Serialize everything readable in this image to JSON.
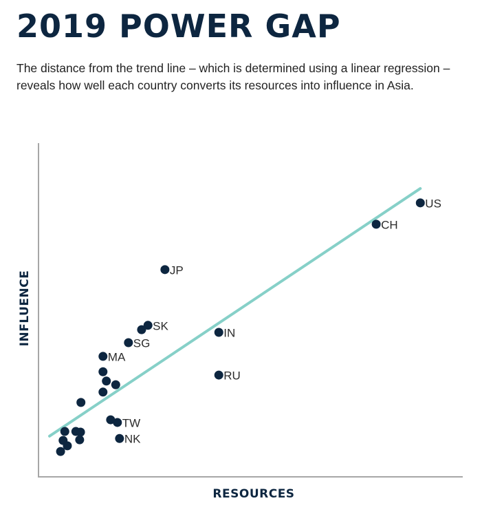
{
  "header": {
    "title": "2019 POWER GAP",
    "subtitle": "The distance from the trend line – which is determined using a linear regression – reveals how well each country converts its resources into influence in Asia."
  },
  "colors": {
    "title": "#0d2640",
    "point": "#0d2640",
    "trend": "#86d0c8",
    "axis": "#a6a6a6"
  },
  "chart_data": {
    "type": "scatter",
    "title": "2019 POWER GAP",
    "xlabel": "RESOURCES",
    "ylabel": "INFLUENCE",
    "xlim": [
      0,
      100
    ],
    "ylim": [
      0,
      100
    ],
    "grid": false,
    "ticks": "none",
    "points": [
      {
        "label": "US",
        "x": 90.0,
        "y": 82.1
      },
      {
        "label": "CH",
        "x": 79.6,
        "y": 75.7
      },
      {
        "label": "JP",
        "x": 29.8,
        "y": 62.1
      },
      {
        "label": "SK",
        "x": 25.8,
        "y": 45.4
      },
      {
        "label": "",
        "x": 24.3,
        "y": 44.1
      },
      {
        "label": "SG",
        "x": 21.2,
        "y": 40.2
      },
      {
        "label": "MA",
        "x": 15.2,
        "y": 36.1
      },
      {
        "label": "",
        "x": 15.2,
        "y": 31.5
      },
      {
        "label": "",
        "x": 16.0,
        "y": 28.7
      },
      {
        "label": "",
        "x": 18.2,
        "y": 27.6
      },
      {
        "label": "",
        "x": 15.2,
        "y": 25.4
      },
      {
        "label": "",
        "x": 10.0,
        "y": 22.3
      },
      {
        "label": "IN",
        "x": 42.5,
        "y": 43.3
      },
      {
        "label": "RU",
        "x": 42.5,
        "y": 30.5
      },
      {
        "label": "",
        "x": 17.0,
        "y": 17.1
      },
      {
        "label": "TW",
        "x": 18.6,
        "y": 16.3
      },
      {
        "label": "NK",
        "x": 19.1,
        "y": 11.5
      },
      {
        "label": "",
        "x": 6.2,
        "y": 13.6
      },
      {
        "label": "",
        "x": 5.8,
        "y": 10.9
      },
      {
        "label": "",
        "x": 6.8,
        "y": 9.3
      },
      {
        "label": "",
        "x": 5.2,
        "y": 7.6
      },
      {
        "label": "",
        "x": 8.8,
        "y": 13.6
      },
      {
        "label": "",
        "x": 9.9,
        "y": 13.4
      },
      {
        "label": "",
        "x": 9.7,
        "y": 11.1
      }
    ],
    "trend_line": {
      "x": [
        2.6,
        90.0
      ],
      "y": [
        12.2,
        86.4
      ],
      "method": "linear regression"
    }
  }
}
